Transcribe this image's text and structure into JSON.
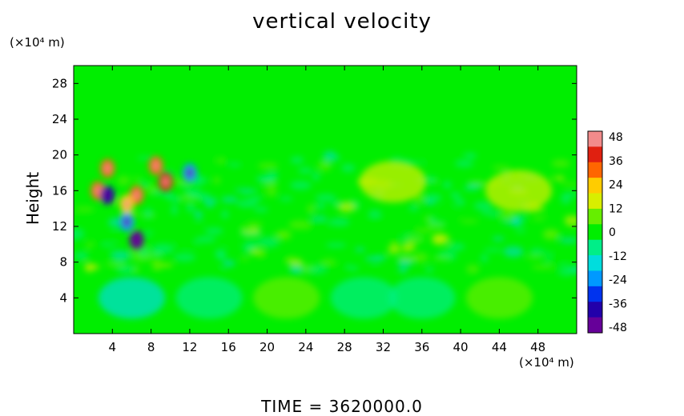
{
  "chart_data": {
    "type": "heatmap",
    "title": "vertical velocity",
    "ylabel": "Height",
    "y_unit": "(×10⁴ m)",
    "x_unit": "(×10⁴ m)",
    "xlim": [
      0,
      52
    ],
    "ylim": [
      0,
      30
    ],
    "x_ticks": [
      4,
      8,
      12,
      16,
      20,
      24,
      28,
      32,
      36,
      40,
      44,
      48
    ],
    "y_ticks": [
      4,
      8,
      12,
      16,
      20,
      24,
      28
    ],
    "colorbar": {
      "ticks": [
        48,
        36,
        24,
        12,
        0,
        -12,
        -24,
        -36,
        -48
      ],
      "range": [
        -48,
        48
      ],
      "colors": [
        "#f28b8b",
        "#e02010",
        "#ff6600",
        "#ffcc00",
        "#d8ee00",
        "#66ee00",
        "#00ee00",
        "#00ee88",
        "#00dddd",
        "#0099ff",
        "#0033ee",
        "#2200aa",
        "#660099"
      ]
    },
    "features": [
      {
        "kind": "updraft",
        "x": 2.5,
        "y": 16,
        "value": 36
      },
      {
        "kind": "updraft",
        "x": 3.5,
        "y": 18.5,
        "value": 30
      },
      {
        "kind": "updraft",
        "x": 9.5,
        "y": 17,
        "value": 40
      },
      {
        "kind": "updraft",
        "x": 8.5,
        "y": 18.8,
        "value": 32
      },
      {
        "kind": "updraft",
        "x": 6.5,
        "y": 15.5,
        "value": 34
      },
      {
        "kind": "updraft",
        "x": 5.5,
        "y": 14.5,
        "value": 28
      },
      {
        "kind": "downdraft",
        "x": 6.5,
        "y": 10.5,
        "value": -45
      },
      {
        "kind": "downdraft",
        "x": 3.5,
        "y": 15.5,
        "value": -40
      },
      {
        "kind": "downdraft",
        "x": 5.5,
        "y": 12.5,
        "value": -24
      },
      {
        "kind": "downdraft",
        "x": 12,
        "y": 18,
        "value": -20
      },
      {
        "kind": "downdraft",
        "x": 6,
        "y": 4,
        "value": -18
      },
      {
        "kind": "updraft",
        "x": 33,
        "y": 17,
        "value": 18
      },
      {
        "kind": "updraft",
        "x": 46,
        "y": 16,
        "value": 14
      },
      {
        "kind": "updraft",
        "x": 22,
        "y": 4,
        "value": 8
      },
      {
        "kind": "updraft",
        "x": 44,
        "y": 4,
        "value": 8
      },
      {
        "kind": "downdraft",
        "x": 14,
        "y": 4,
        "value": -6
      },
      {
        "kind": "downdraft",
        "x": 30,
        "y": 4,
        "value": -6
      },
      {
        "kind": "downdraft",
        "x": 36,
        "y": 4,
        "value": -6
      }
    ]
  },
  "footer": "TIME  =  3620000.0"
}
